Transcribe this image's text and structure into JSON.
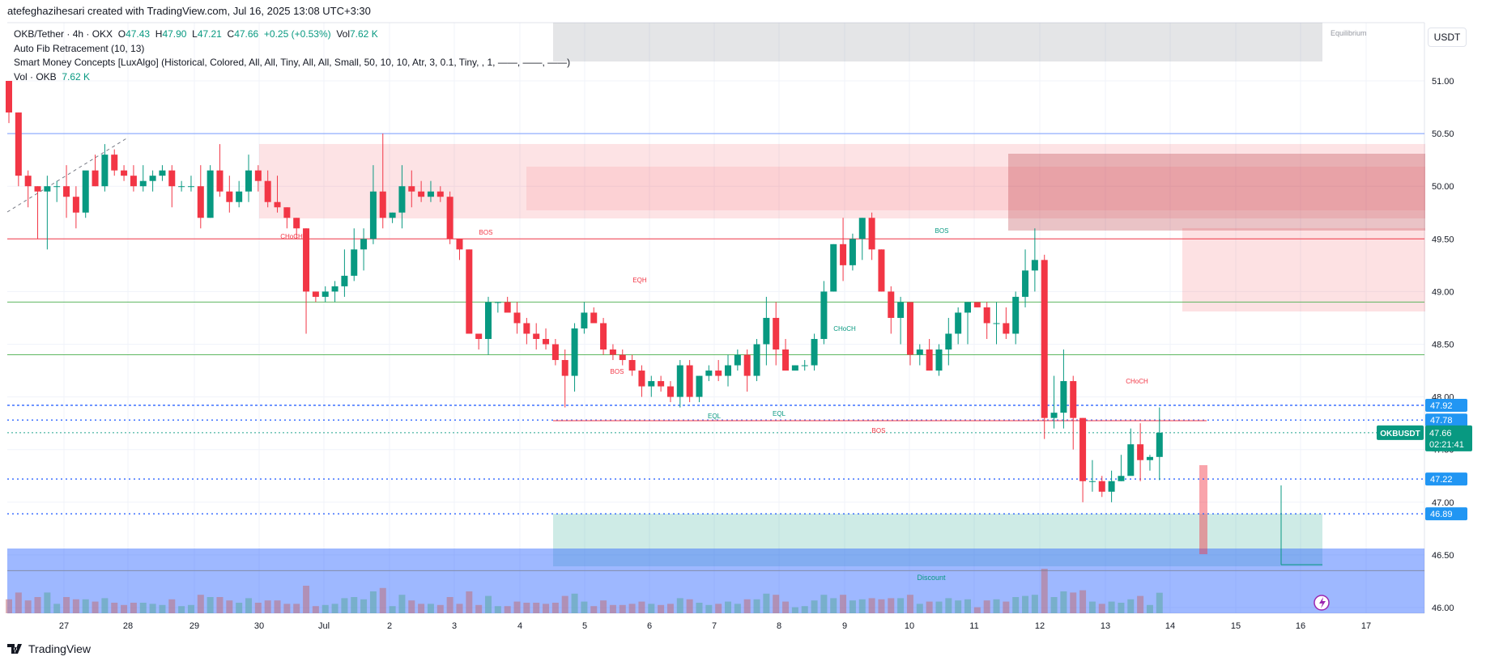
{
  "header": {
    "caption": "atefeghazihesari created with TradingView.com, Jul 16, 2025 13:08 UTC+3:30"
  },
  "legend": {
    "symbol": "OKB/Tether · 4h · OKX",
    "o_label": "O",
    "o_value": "47.43",
    "h_label": "H",
    "h_value": "47.90",
    "l_label": "L",
    "l_value": "47.21",
    "c_label": "C",
    "c_value": "47.66",
    "change": "+0.25 (+0.53%)",
    "vol_label": "Vol",
    "vol_value": "7.62 K",
    "indicator_fib": "Auto Fib Retracement (10, 13)",
    "indicator_smc": "Smart Money Concepts [LuxAlgo] (Historical, Colored, All, All, Tiny, All, All, Small, 50, 10, 10, Atr, 3, 0.1, Tiny, , 1, ——, ——, ——)",
    "vol_indicator": "Vol · OKB",
    "vol_indicator_value": "7.62 K"
  },
  "toolbar": {
    "currency": "USDT"
  },
  "footer": {
    "brand": "TradingView",
    "logo_icon": "tradingview-logo-icon"
  },
  "colors": {
    "up": "#089981",
    "down": "#f23645",
    "blue": "#2962ff",
    "green_line": "#4caf50",
    "red_line": "#f23645"
  },
  "chart_data": {
    "type": "candlestick",
    "symbol": "OKBUSDT",
    "timeframe": "4h",
    "y_axis": {
      "ticks": [
        "46.00",
        "46.50",
        "47.00",
        "47.50",
        "48.00",
        "48.50",
        "49.00",
        "49.50",
        "50.00",
        "50.50",
        "51.00"
      ],
      "ylim": [
        45.98,
        51.55
      ]
    },
    "x_axis": {
      "ticks": [
        "27",
        "28",
        "29",
        "30",
        "Jul",
        "2",
        "3",
        "4",
        "5",
        "6",
        "7",
        "8",
        "9",
        "10",
        "11",
        "12",
        "13",
        "14",
        "15",
        "16",
        "17"
      ]
    },
    "price_labels": [
      {
        "value": "47.92",
        "kind": "blue"
      },
      {
        "value": "47.78",
        "kind": "blue"
      },
      {
        "value": "47.66",
        "kind": "last",
        "name": "OKBUSDT",
        "countdown": "02:21:41"
      },
      {
        "value": "47.22",
        "kind": "blue"
      },
      {
        "value": "46.89",
        "kind": "blue"
      }
    ],
    "annotations": {
      "equilibrium": "Equilibrium",
      "discount": "Discount",
      "labels": [
        "CHoCH",
        "BOS",
        "EQH",
        "BOS",
        "EQL",
        "EQL",
        "CHoCH",
        "BOS",
        "BOS",
        "CHoCH"
      ]
    },
    "candles": [
      [
        51.0,
        51.0,
        50.6,
        50.7
      ],
      [
        50.7,
        50.7,
        50.0,
        50.1
      ],
      [
        50.1,
        50.15,
        49.8,
        50.0
      ],
      [
        50.0,
        50.0,
        49.5,
        49.95
      ],
      [
        49.95,
        50.1,
        49.4,
        50.0
      ],
      [
        50.0,
        50.05,
        49.85,
        50.0
      ],
      [
        50.0,
        50.2,
        49.7,
        49.9
      ],
      [
        49.9,
        50.0,
        49.6,
        49.75
      ],
      [
        49.75,
        50.1,
        49.7,
        50.15
      ],
      [
        50.15,
        50.3,
        50.0,
        50.0
      ],
      [
        50.0,
        50.4,
        49.95,
        50.3
      ],
      [
        50.3,
        50.35,
        50.1,
        50.15
      ],
      [
        50.15,
        50.2,
        50.05,
        50.1
      ],
      [
        50.1,
        50.2,
        49.95,
        50.0
      ],
      [
        50.0,
        50.2,
        49.95,
        50.05
      ],
      [
        50.05,
        50.15,
        49.95,
        50.1
      ],
      [
        50.1,
        50.2,
        50.05,
        50.15
      ],
      [
        50.15,
        50.2,
        49.8,
        50.0
      ],
      [
        50.0,
        50.05,
        49.95,
        50.0
      ],
      [
        50.0,
        50.1,
        49.95,
        50.0
      ],
      [
        50.0,
        50.2,
        49.6,
        49.7
      ],
      [
        49.7,
        50.2,
        49.7,
        50.15
      ],
      [
        50.15,
        50.4,
        49.9,
        49.95
      ],
      [
        49.95,
        50.1,
        49.75,
        49.85
      ],
      [
        49.85,
        50.05,
        49.8,
        49.95
      ],
      [
        49.95,
        50.3,
        49.85,
        50.15
      ],
      [
        50.15,
        50.2,
        49.95,
        50.05
      ],
      [
        50.05,
        50.15,
        49.8,
        49.85
      ],
      [
        49.85,
        50.1,
        49.75,
        49.8
      ],
      [
        49.8,
        49.8,
        49.6,
        49.7
      ],
      [
        49.7,
        49.7,
        49.5,
        49.6
      ],
      [
        49.6,
        49.6,
        48.6,
        49.0
      ],
      [
        49.0,
        49.0,
        48.9,
        48.95
      ],
      [
        48.95,
        49.05,
        48.9,
        49.0
      ],
      [
        49.0,
        49.1,
        48.9,
        49.05
      ],
      [
        49.05,
        49.4,
        48.95,
        49.15
      ],
      [
        49.15,
        49.6,
        49.1,
        49.4
      ],
      [
        49.4,
        49.6,
        49.2,
        49.5
      ],
      [
        49.5,
        50.2,
        49.45,
        49.95
      ],
      [
        49.95,
        50.5,
        49.6,
        49.7
      ],
      [
        49.7,
        49.75,
        49.65,
        49.75
      ],
      [
        49.75,
        50.2,
        49.6,
        50.0
      ],
      [
        50.0,
        50.15,
        49.8,
        49.95
      ],
      [
        49.95,
        50.05,
        49.85,
        49.9
      ],
      [
        49.9,
        50.05,
        49.85,
        49.95
      ],
      [
        49.95,
        50.0,
        49.85,
        49.9
      ],
      [
        49.9,
        49.95,
        49.45,
        49.5
      ],
      [
        49.5,
        49.5,
        49.3,
        49.4
      ],
      [
        49.4,
        49.4,
        48.65,
        48.6
      ],
      [
        48.6,
        48.6,
        48.45,
        48.55
      ],
      [
        48.55,
        48.95,
        48.4,
        48.9
      ],
      [
        48.9,
        48.9,
        48.8,
        48.9
      ],
      [
        48.9,
        48.95,
        48.85,
        48.8
      ],
      [
        48.8,
        48.9,
        48.6,
        48.7
      ],
      [
        48.7,
        48.75,
        48.5,
        48.6
      ],
      [
        48.6,
        48.7,
        48.45,
        48.55
      ],
      [
        48.55,
        48.65,
        48.45,
        48.5
      ],
      [
        48.5,
        48.55,
        48.3,
        48.35
      ],
      [
        48.35,
        48.45,
        47.9,
        48.2
      ],
      [
        48.2,
        48.7,
        48.05,
        48.65
      ],
      [
        48.65,
        48.9,
        48.6,
        48.8
      ],
      [
        48.8,
        48.85,
        48.75,
        48.7
      ],
      [
        48.7,
        48.75,
        48.4,
        48.45
      ],
      [
        48.45,
        48.5,
        48.35,
        48.4
      ],
      [
        48.4,
        48.45,
        48.3,
        48.35
      ],
      [
        48.35,
        48.4,
        48.2,
        48.25
      ],
      [
        48.25,
        48.3,
        48.0,
        48.1
      ],
      [
        48.1,
        48.2,
        48.0,
        48.15
      ],
      [
        48.15,
        48.2,
        48.05,
        48.1
      ],
      [
        48.1,
        48.15,
        47.95,
        48.0
      ],
      [
        48.0,
        48.35,
        47.9,
        48.3
      ],
      [
        48.3,
        48.35,
        47.95,
        48.0
      ],
      [
        48.0,
        48.2,
        47.95,
        48.2
      ],
      [
        48.2,
        48.3,
        48.15,
        48.25
      ],
      [
        48.25,
        48.35,
        48.15,
        48.2
      ],
      [
        48.2,
        48.4,
        48.1,
        48.3
      ],
      [
        48.3,
        48.45,
        48.25,
        48.4
      ],
      [
        48.4,
        48.45,
        48.05,
        48.2
      ],
      [
        48.2,
        48.55,
        48.15,
        48.5
      ],
      [
        48.5,
        48.95,
        48.3,
        48.75
      ],
      [
        48.75,
        48.9,
        48.3,
        48.45
      ],
      [
        48.45,
        48.55,
        48.25,
        48.25
      ],
      [
        48.25,
        48.3,
        48.25,
        48.3
      ],
      [
        48.3,
        48.35,
        48.25,
        48.3
      ],
      [
        48.3,
        48.6,
        48.25,
        48.55
      ],
      [
        48.55,
        49.1,
        48.5,
        49.0
      ],
      [
        49.0,
        49.45,
        49.0,
        49.45
      ],
      [
        49.45,
        49.7,
        49.1,
        49.25
      ],
      [
        49.25,
        49.55,
        49.2,
        49.5
      ],
      [
        49.5,
        49.7,
        49.3,
        49.7
      ],
      [
        49.7,
        49.75,
        49.3,
        49.4
      ],
      [
        49.4,
        49.4,
        49.0,
        49.0
      ],
      [
        49.0,
        49.05,
        48.6,
        48.75
      ],
      [
        48.75,
        48.95,
        48.5,
        48.9
      ],
      [
        48.9,
        48.9,
        48.3,
        48.4
      ],
      [
        48.4,
        48.5,
        48.3,
        48.45
      ],
      [
        48.45,
        48.55,
        48.25,
        48.25
      ],
      [
        48.25,
        48.5,
        48.2,
        48.45
      ],
      [
        48.45,
        48.75,
        48.3,
        48.6
      ],
      [
        48.6,
        48.85,
        48.5,
        48.8
      ],
      [
        48.8,
        48.9,
        48.5,
        48.9
      ],
      [
        48.9,
        48.9,
        48.85,
        48.85
      ],
      [
        48.85,
        48.9,
        48.55,
        48.7
      ],
      [
        48.7,
        48.9,
        48.5,
        48.7
      ],
      [
        48.7,
        48.85,
        48.55,
        48.6
      ],
      [
        48.6,
        49.0,
        48.5,
        48.95
      ],
      [
        48.95,
        49.4,
        48.85,
        49.2
      ],
      [
        49.2,
        49.6,
        49.0,
        49.3
      ],
      [
        49.3,
        49.35,
        47.6,
        47.8
      ],
      [
        47.8,
        48.2,
        47.7,
        47.85
      ],
      [
        47.85,
        48.45,
        47.7,
        48.15
      ],
      [
        48.15,
        48.2,
        47.5,
        47.8
      ],
      [
        47.8,
        47.8,
        47.0,
        47.2
      ],
      [
        47.2,
        47.4,
        47.1,
        47.2
      ],
      [
        47.2,
        47.25,
        47.05,
        47.1
      ],
      [
        47.1,
        47.3,
        47.0,
        47.2
      ],
      [
        47.2,
        47.45,
        47.2,
        47.25
      ],
      [
        47.25,
        47.7,
        47.3,
        47.55
      ],
      [
        47.55,
        47.75,
        47.2,
        47.4
      ],
      [
        47.4,
        47.45,
        47.3,
        47.43
      ],
      [
        47.43,
        47.9,
        47.21,
        47.66
      ]
    ]
  }
}
